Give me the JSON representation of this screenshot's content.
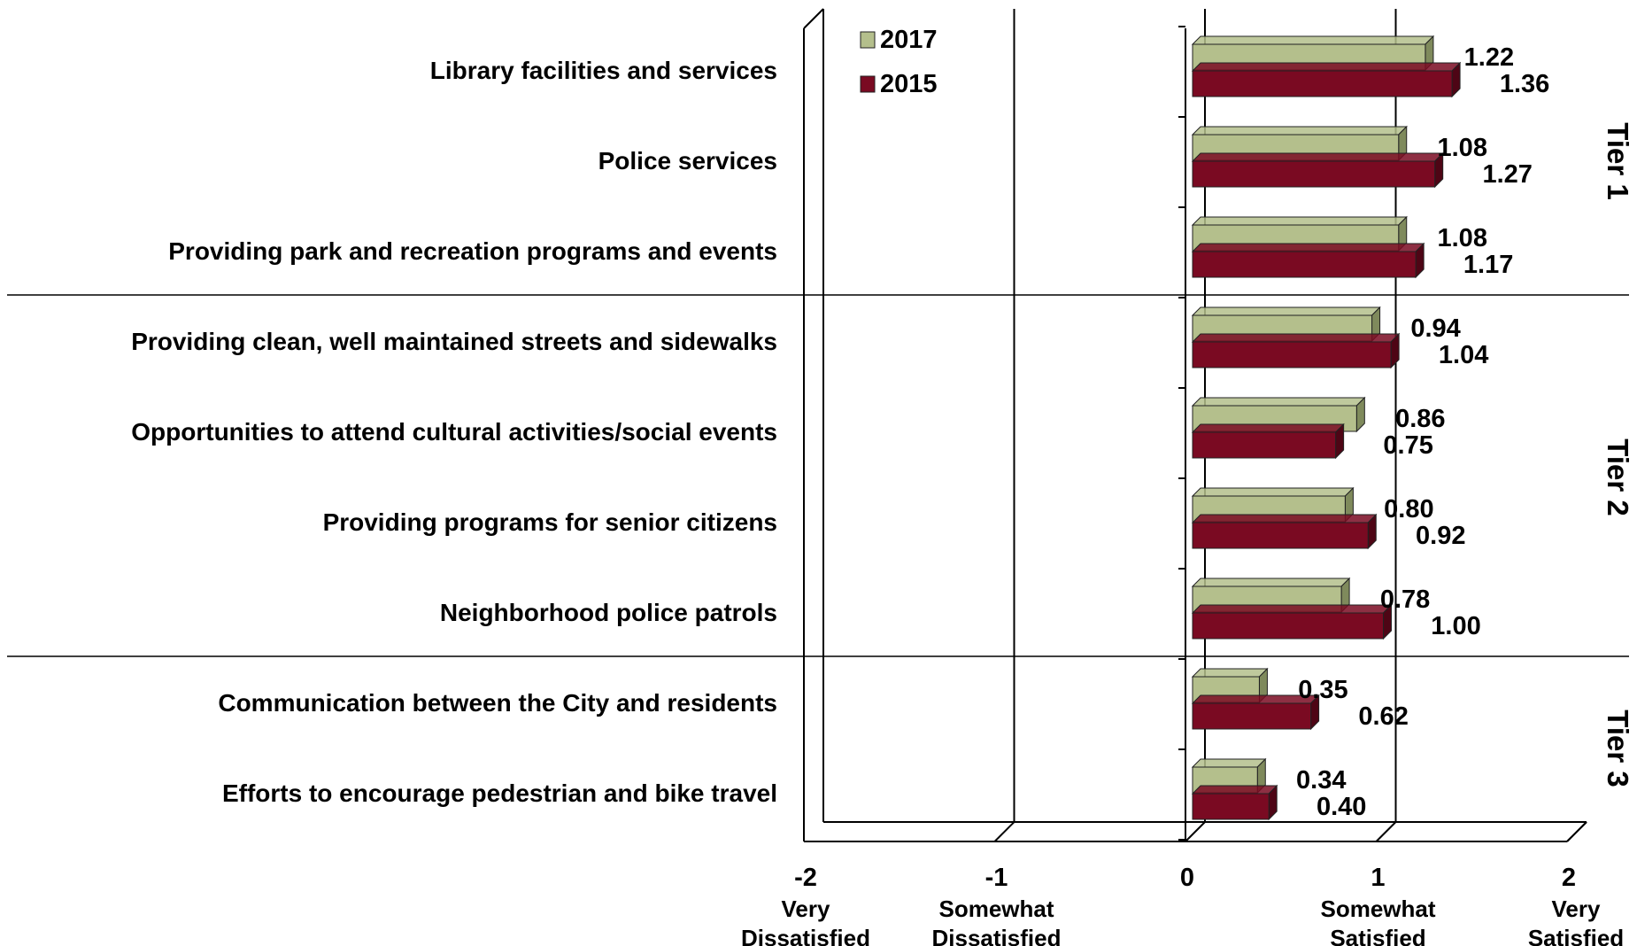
{
  "chart_data": {
    "type": "bar",
    "orientation": "horizontal",
    "categories": [
      "Library facilities and services",
      "Police services",
      "Providing park and recreation programs and events",
      "Providing clean, well maintained streets and sidewalks",
      "Opportunities to attend cultural activities/social events",
      "Providing programs for senior citizens",
      "Neighborhood police patrols",
      "Communication between the City and residents",
      "Efforts to encourage pedestrian and bike travel"
    ],
    "series": [
      {
        "name": "2017",
        "color": "#b4bf8c",
        "dark": "#7f8a5c",
        "values": [
          1.22,
          1.08,
          1.08,
          0.94,
          0.86,
          0.8,
          0.78,
          0.35,
          0.34
        ],
        "labels": [
          "1.22",
          "1.08",
          "1.08",
          "0.94",
          "0.86",
          "0.80",
          "0.78",
          "0.35",
          "0.34"
        ]
      },
      {
        "name": "2015",
        "color": "#7a0a22",
        "dark": "#4e0515",
        "values": [
          1.36,
          1.27,
          1.17,
          1.04,
          0.75,
          0.92,
          1.0,
          0.62,
          0.4
        ],
        "labels": [
          "1.36",
          "1.27",
          "1.17",
          "1.04",
          "0.75",
          "0.92",
          "1.00",
          "0.62",
          "0.40"
        ]
      }
    ],
    "xlim": [
      -2,
      2
    ],
    "x_ticks": [
      {
        "value": -2,
        "label": "-2",
        "sub": [
          "Very",
          "Dissatisfied"
        ]
      },
      {
        "value": -1,
        "label": "-1",
        "sub": [
          "Somewhat",
          "Dissatisfied"
        ]
      },
      {
        "value": 0,
        "label": "0",
        "sub": []
      },
      {
        "value": 1,
        "label": "1",
        "sub": [
          "Somewhat",
          "Satisfied"
        ]
      },
      {
        "value": 2,
        "label": "2",
        "sub": [
          "Very",
          "Satisfied"
        ]
      }
    ],
    "groups": [
      {
        "label": "Tier 1",
        "start": 0,
        "end": 2
      },
      {
        "label": "Tier 2",
        "start": 3,
        "end": 6
      },
      {
        "label": "Tier 3",
        "start": 7,
        "end": 8
      }
    ],
    "legend_position": "top-left",
    "grid": true
  }
}
